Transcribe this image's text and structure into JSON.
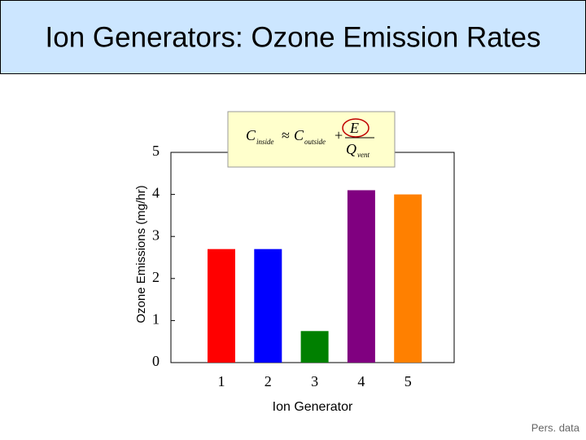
{
  "chart_data": {
    "type": "bar",
    "title": "Ion Generators: Ozone Emission Rates",
    "x_label": "Ion Generator",
    "y_label": "Ozone Emissions (mg/hr)",
    "categories": [
      "1",
      "2",
      "3",
      "4",
      "5"
    ],
    "values": [
      2.7,
      2.7,
      0.75,
      4.1,
      4.0
    ],
    "colors": [
      "#ff0000",
      "#0000ff",
      "#008000",
      "#800080",
      "#ff8000"
    ],
    "ylim": [
      0,
      5
    ],
    "yticks": [
      0,
      1,
      2,
      3,
      4,
      5
    ],
    "annotation": {
      "lhs": "C",
      "lhs_sub": "inside",
      "rel": "≈",
      "rhs": "C",
      "rhs_sub": "outside",
      "op": "+",
      "num": "E",
      "den": "Q",
      "den_sub": "vent"
    },
    "source": "Pers. data"
  }
}
